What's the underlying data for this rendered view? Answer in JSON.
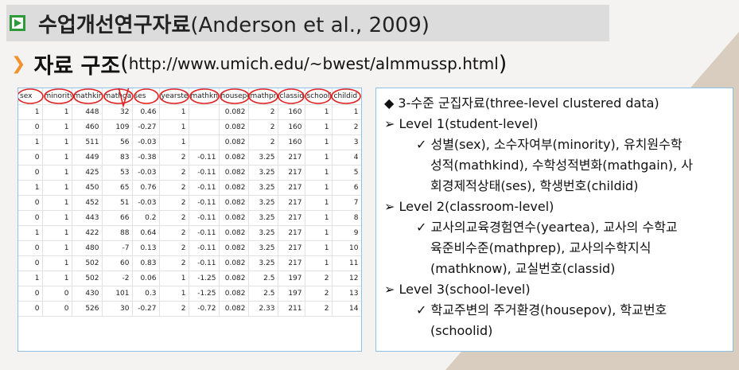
{
  "title": {
    "korean": "수업개선연구자료",
    "citation": "(Anderson et al., 2009)"
  },
  "subtitle": {
    "korean": "자료 구조",
    "open_paren": "(",
    "url": "http://www.umich.edu/~bwest/almmussp.html",
    "close_paren": ")"
  },
  "data_table": {
    "headers": [
      "sex",
      "minority",
      "mathkind",
      "mathgain",
      "ses",
      "yearstea",
      "mathknow",
      "housepov",
      "mathprep",
      "classid",
      "schoolid",
      "childid"
    ],
    "rows": [
      [
        "1",
        "1",
        "448",
        "32",
        "0.46",
        "1",
        "",
        "0.082",
        "2",
        "160",
        "1",
        "1"
      ],
      [
        "0",
        "1",
        "460",
        "109",
        "-0.27",
        "1",
        "",
        "0.082",
        "2",
        "160",
        "1",
        "2"
      ],
      [
        "1",
        "1",
        "511",
        "56",
        "-0.03",
        "1",
        "",
        "0.082",
        "2",
        "160",
        "1",
        "3"
      ],
      [
        "0",
        "1",
        "449",
        "83",
        "-0.38",
        "2",
        "-0.11",
        "0.082",
        "3.25",
        "217",
        "1",
        "4"
      ],
      [
        "0",
        "1",
        "425",
        "53",
        "-0.03",
        "2",
        "-0.11",
        "0.082",
        "3.25",
        "217",
        "1",
        "5"
      ],
      [
        "1",
        "1",
        "450",
        "65",
        "0.76",
        "2",
        "-0.11",
        "0.082",
        "3.25",
        "217",
        "1",
        "6"
      ],
      [
        "0",
        "1",
        "452",
        "51",
        "-0.03",
        "2",
        "-0.11",
        "0.082",
        "3.25",
        "217",
        "1",
        "7"
      ],
      [
        "0",
        "1",
        "443",
        "66",
        "0.2",
        "2",
        "-0.11",
        "0.082",
        "3.25",
        "217",
        "1",
        "8"
      ],
      [
        "1",
        "1",
        "422",
        "88",
        "0.64",
        "2",
        "-0.11",
        "0.082",
        "3.25",
        "217",
        "1",
        "9"
      ],
      [
        "0",
        "1",
        "480",
        "-7",
        "0.13",
        "2",
        "-0.11",
        "0.082",
        "3.25",
        "217",
        "1",
        "10"
      ],
      [
        "0",
        "1",
        "502",
        "60",
        "0.83",
        "2",
        "-0.11",
        "0.082",
        "3.25",
        "217",
        "1",
        "11"
      ],
      [
        "1",
        "1",
        "502",
        "-2",
        "0.06",
        "1",
        "-1.25",
        "0.082",
        "2.5",
        "197",
        "2",
        "12"
      ],
      [
        "0",
        "0",
        "430",
        "101",
        "0.3",
        "1",
        "-1.25",
        "0.082",
        "2.5",
        "197",
        "2",
        "13"
      ],
      [
        "0",
        "0",
        "526",
        "30",
        "-0.27",
        "2",
        "-0.72",
        "0.082",
        "2.33",
        "211",
        "2",
        "14"
      ]
    ]
  },
  "description": {
    "heading": "◆ 3-수준 군집자료(three-level clustered data)",
    "level1_title": "➢ Level 1(student-level)",
    "level1_line1": "✓ 성별(sex), 소수자여부(minority), 유치원수학",
    "level1_line2": "성적(mathkind), 수학성적변화(mathgain), 사",
    "level1_line3": "회경제적상태(ses), 학생번호(childid)",
    "level2_title": "➢ Level 2(classroom-level)",
    "level2_line1": "✓ 교사의교육경험연수(yeartea), 교사의 수학교",
    "level2_line2": "육준비수준(mathprep), 교사의수학지식",
    "level2_line3": "(mathknow), 교실번호(classid)",
    "level3_title": "➢ Level 3(school-level)",
    "level3_line1": "✓ 학교주변의 주거환경(housepov), 학교번호",
    "level3_line2": "(schoolid)"
  },
  "colors": {
    "title_bar": "#dcdcdc",
    "title_icon": "#2f9a3a",
    "chevron": "#f0922d",
    "box_border": "#8dc3ea",
    "annotation_red": "#e02020",
    "background_triangle": "#d9cdbf"
  }
}
